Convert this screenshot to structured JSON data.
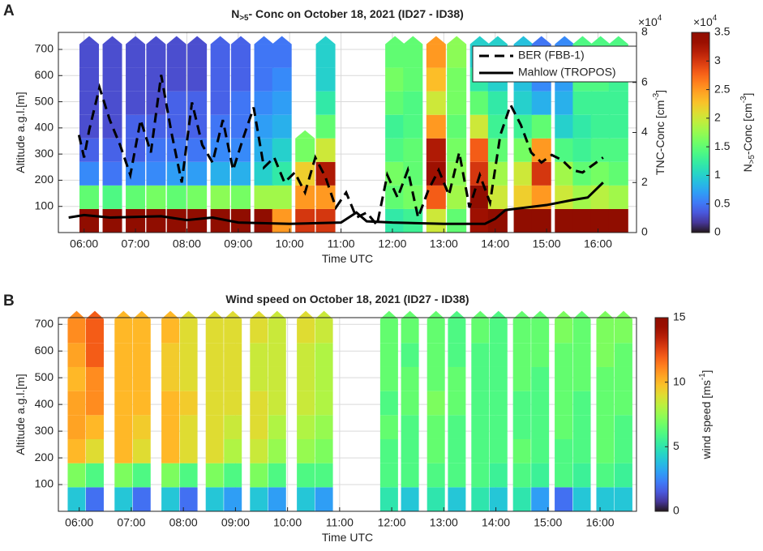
{
  "chart_data": [
    {
      "type": "profile",
      "panel": "A",
      "title": [
        {
          "text": "N"
        },
        {
          "text": ">5",
          "shift": "sub"
        },
        {
          "text": "- Conc on October 18, 2021 (ID27 - ID38)"
        }
      ],
      "x_label": [
        {
          "text": "Time UTC"
        }
      ],
      "y_label": [
        {
          "text": "Altitude a.g.l.[m]"
        }
      ],
      "y2_label": [
        {
          "text": "TNC-Conc [cm"
        },
        {
          "text": "-3",
          "shift": "super"
        },
        {
          "text": "]"
        }
      ],
      "y2_exponent": [
        {
          "text": "×10"
        },
        {
          "text": "4",
          "shift": "super"
        }
      ],
      "colorbar_label": [
        {
          "text": "N"
        },
        {
          "text": ">5",
          "shift": "sub"
        },
        {
          "text": "-Conc [cm"
        },
        {
          "text": "-3",
          "shift": "super"
        },
        {
          "text": "]"
        }
      ],
      "colorbar_exponent": [
        {
          "text": "×10"
        },
        {
          "text": "4",
          "shift": "super"
        }
      ],
      "colormap": "turbo",
      "clim": [
        0,
        3.5
      ],
      "cticks": [
        0,
        0.5,
        1,
        1.5,
        2,
        2.5,
        3,
        3.5
      ],
      "xlim": [
        5.5,
        16.75
      ],
      "xticks": [
        {
          "value": 6,
          "label": "06:00"
        },
        {
          "value": 7,
          "label": "07:00"
        },
        {
          "value": 8,
          "label": "08:00"
        },
        {
          "value": 9,
          "label": "09:00"
        },
        {
          "value": 10,
          "label": "10:00"
        },
        {
          "value": 11,
          "label": "11:00"
        },
        {
          "value": 12,
          "label": "12:00"
        },
        {
          "value": 13,
          "label": "13:00"
        },
        {
          "value": 14,
          "label": "14:00"
        },
        {
          "value": 15,
          "label": "15:00"
        },
        {
          "value": 16,
          "label": "16:00"
        }
      ],
      "ylim": [
        0,
        765
      ],
      "yticks": [
        100,
        200,
        300,
        400,
        500,
        600,
        700
      ],
      "y2lim": [
        0,
        8
      ],
      "y2ticks": [
        0,
        2,
        4,
        6,
        8
      ],
      "grid": true,
      "legend": "upper right",
      "altitude_bins": [
        0,
        90,
        180,
        270,
        360,
        450,
        540,
        630,
        720
      ],
      "profiles": [
        {
          "x": 6.1,
          "values": [
            3.5,
            1.5,
            0.6,
            0.4,
            0.3,
            0.3,
            0.3,
            0.3
          ]
        },
        {
          "x": 6.55,
          "values": [
            3.5,
            1.4,
            0.5,
            0.4,
            0.3,
            0.3,
            0.3,
            0.3
          ]
        },
        {
          "x": 7.0,
          "values": [
            3.5,
            1.5,
            0.6,
            0.4,
            0.4,
            0.3,
            0.3,
            0.3
          ]
        },
        {
          "x": 7.4,
          "values": [
            3.5,
            1.6,
            0.6,
            0.5,
            0.4,
            0.3,
            0.3,
            0.3
          ]
        },
        {
          "x": 7.8,
          "values": [
            3.5,
            1.5,
            0.7,
            0.5,
            0.4,
            0.4,
            0.3,
            0.3
          ]
        },
        {
          "x": 8.2,
          "values": [
            3.5,
            1.6,
            0.7,
            0.5,
            0.4,
            0.4,
            0.3,
            0.3
          ]
        },
        {
          "x": 8.65,
          "values": [
            3.5,
            1.7,
            0.8,
            0.6,
            0.5,
            0.4,
            0.4,
            0.4
          ]
        },
        {
          "x": 9.05,
          "values": [
            3.5,
            1.6,
            0.8,
            0.6,
            0.5,
            0.5,
            0.4,
            0.4
          ]
        },
        {
          "x": 9.5,
          "values": [
            3.5,
            1.8,
            1.0,
            0.8,
            0.7,
            0.6,
            0.5,
            0.5
          ]
        },
        {
          "x": 9.85,
          "values": [
            2.5,
            1.8,
            1.2,
            1.0,
            0.8,
            0.7,
            0.6,
            0.5
          ]
        },
        {
          "x": 10.3,
          "values": [
            3.0,
            2.5,
            2.2,
            1.6,
            null,
            null,
            null,
            null
          ]
        },
        {
          "x": 10.7,
          "values": [
            3.0,
            2.5,
            3.2,
            2.0,
            1.5,
            1.2,
            1.0,
            1.0
          ]
        },
        {
          "x": 12.05,
          "values": [
            1.2,
            1.5,
            1.6,
            1.4,
            1.3,
            1.5,
            1.6,
            1.5
          ]
        },
        {
          "x": 12.4,
          "values": [
            1.3,
            1.6,
            1.5,
            1.5,
            1.4,
            1.4,
            1.5,
            1.5
          ]
        },
        {
          "x": 12.85,
          "values": [
            2.0,
            2.8,
            3.3,
            3.2,
            2.5,
            2.0,
            2.3,
            2.5
          ]
        },
        {
          "x": 13.25,
          "values": [
            1.5,
            1.8,
            1.7,
            1.6,
            1.5,
            1.6,
            1.6,
            1.7
          ]
        },
        {
          "x": 13.7,
          "values": [
            3.3,
            3.5,
            3.0,
            2.8,
            2.0,
            1.5,
            1.2,
            1.0
          ]
        },
        {
          "x": 14.05,
          "values": [
            3.5,
            2.0,
            1.8,
            1.5,
            1.3,
            1.2,
            1.0,
            1.0
          ]
        },
        {
          "x": 14.55,
          "values": [
            3.5,
            2.2,
            2.0,
            1.6,
            1.3,
            1.0,
            0.9,
            0.9
          ]
        },
        {
          "x": 14.9,
          "values": [
            3.5,
            2.5,
            3.0,
            2.5,
            1.5,
            0.8,
            0.6,
            0.5
          ]
        },
        {
          "x": 15.35,
          "values": [
            3.5,
            2.0,
            1.8,
            1.4,
            1.0,
            0.8,
            0.7,
            0.6
          ]
        },
        {
          "x": 15.7,
          "values": [
            3.5,
            1.8,
            1.5,
            1.3,
            1.2,
            1.3,
            1.4,
            1.4
          ]
        },
        {
          "x": 16.05,
          "values": [
            3.5,
            1.9,
            1.6,
            1.4,
            1.3,
            1.3,
            1.4,
            1.4
          ]
        },
        {
          "x": 16.4,
          "values": [
            3.5,
            1.8,
            1.5,
            1.4,
            1.3,
            1.3,
            1.3,
            1.4
          ]
        }
      ],
      "series": [
        {
          "name": "BER (FBB-1)",
          "color": "#000000",
          "dash": "dashed",
          "axis": "y2",
          "x": [
            5.9,
            6.0,
            6.1,
            6.3,
            6.5,
            6.7,
            6.9,
            7.1,
            7.3,
            7.5,
            7.7,
            7.9,
            8.1,
            8.3,
            8.5,
            8.7,
            8.9,
            9.1,
            9.3,
            9.5,
            9.7,
            9.9,
            10.1,
            10.3,
            10.5,
            10.7,
            10.9,
            11.1,
            11.3,
            11.5,
            11.7,
            11.9,
            12.1,
            12.3,
            12.5,
            12.7,
            12.9,
            13.1,
            13.3,
            13.5,
            13.7,
            13.9,
            14.1,
            14.3,
            14.5,
            14.7,
            14.9,
            15.1,
            15.3,
            15.5,
            15.7,
            15.9,
            16.1
          ],
          "values": [
            3.9,
            3.0,
            4.1,
            5.8,
            4.5,
            3.5,
            2.3,
            4.5,
            3.2,
            6.3,
            4.0,
            2.0,
            5.2,
            3.5,
            2.8,
            4.5,
            2.5,
            3.8,
            5.0,
            2.6,
            3.0,
            2.0,
            2.4,
            1.6,
            3.0,
            2.2,
            1.0,
            1.6,
            0.6,
            0.8,
            0.3,
            2.3,
            1.4,
            2.5,
            0.6,
            1.7,
            2.5,
            1.5,
            3.2,
            1.0,
            2.3,
            1.2,
            3.9,
            5.1,
            4.3,
            3.2,
            2.8,
            3.1,
            2.9,
            2.5,
            2.4,
            2.7,
            3.0
          ]
        },
        {
          "name": "Mahlow (TROPOS)",
          "color": "#000000",
          "dash": "solid",
          "axis": "y2",
          "x": [
            5.7,
            6.0,
            6.5,
            7.5,
            8.0,
            8.5,
            9.0,
            10.0,
            11.0,
            11.3,
            11.5,
            12.0,
            13.0,
            13.8,
            14.0,
            14.2,
            15.0,
            15.5,
            15.8,
            16.1
          ],
          "values": [
            0.6,
            0.7,
            0.6,
            0.65,
            0.5,
            0.6,
            0.4,
            0.35,
            0.4,
            0.8,
            0.45,
            0.4,
            0.35,
            0.35,
            0.55,
            0.9,
            1.1,
            1.3,
            1.4,
            2.0
          ]
        }
      ]
    },
    {
      "type": "profile",
      "panel": "B",
      "title": [
        {
          "text": "Wind speed on October 18, 2021 (ID27 - ID38)"
        }
      ],
      "x_label": [
        {
          "text": "Time UTC"
        }
      ],
      "y_label": [
        {
          "text": "Altitude a.g.l.[m]"
        }
      ],
      "colorbar_label": [
        {
          "text": "wind speed [ms"
        },
        {
          "text": "-1",
          "shift": "super"
        },
        {
          "text": "]"
        }
      ],
      "colormap": "turbo",
      "clim": [
        0,
        15
      ],
      "cticks": [
        0,
        5,
        10,
        15
      ],
      "xlim": [
        5.6,
        16.7
      ],
      "xticks": [
        {
          "value": 6,
          "label": "06:00"
        },
        {
          "value": 7,
          "label": "07:00"
        },
        {
          "value": 8,
          "label": "08:00"
        },
        {
          "value": 9,
          "label": "09:00"
        },
        {
          "value": 10,
          "label": "10:00"
        },
        {
          "value": 11,
          "label": "11:00"
        },
        {
          "value": 12,
          "label": "12:00"
        },
        {
          "value": 13,
          "label": "13:00"
        },
        {
          "value": 14,
          "label": "14:00"
        },
        {
          "value": 15,
          "label": "15:00"
        },
        {
          "value": 16,
          "label": "16:00"
        }
      ],
      "ylim": [
        0,
        725
      ],
      "yticks": [
        100,
        200,
        300,
        400,
        500,
        600,
        700
      ],
      "grid": true,
      "altitude_bins": [
        0,
        90,
        180,
        270,
        360,
        450,
        540,
        630,
        720
      ],
      "profiles": [
        {
          "x": 5.95,
          "values": [
            4,
            7,
            10,
            10.5,
            10.5,
            10,
            10.5,
            11
          ]
        },
        {
          "x": 6.3,
          "values": [
            2,
            6,
            9,
            10,
            11,
            11,
            12,
            12
          ]
        },
        {
          "x": 6.85,
          "values": [
            4,
            7,
            10,
            10,
            10,
            10,
            10,
            10
          ]
        },
        {
          "x": 7.2,
          "values": [
            2,
            6,
            9,
            9.5,
            10,
            10,
            10,
            10
          ]
        },
        {
          "x": 7.75,
          "values": [
            4,
            7,
            10,
            10,
            10,
            9.5,
            9.5,
            10
          ]
        },
        {
          "x": 8.1,
          "values": [
            2,
            6,
            9,
            9,
            9.5,
            9,
            9,
            9
          ]
        },
        {
          "x": 8.6,
          "values": [
            4,
            7,
            9,
            9,
            9,
            9,
            9,
            9
          ]
        },
        {
          "x": 8.95,
          "values": [
            3,
            6,
            8,
            8.5,
            9,
            9,
            9,
            9
          ]
        },
        {
          "x": 9.45,
          "values": [
            4,
            7,
            8.5,
            9,
            9,
            8.5,
            8.5,
            9
          ]
        },
        {
          "x": 9.8,
          "values": [
            3,
            6,
            7.5,
            8,
            8.5,
            8.5,
            8.5,
            8.5
          ]
        },
        {
          "x": 10.35,
          "values": [
            4,
            6,
            7.5,
            8,
            8.5,
            8.5,
            8.5,
            9
          ]
        },
        {
          "x": 10.7,
          "values": [
            3,
            6,
            7,
            7.5,
            8,
            8,
            8,
            8.5
          ]
        },
        {
          "x": 11.95,
          "values": [
            5,
            6,
            6,
            6.5,
            6,
            6.5,
            6.5,
            6.5
          ]
        },
        {
          "x": 12.35,
          "values": [
            4,
            6,
            6,
            6,
            6.5,
            6.5,
            6,
            6.5
          ]
        },
        {
          "x": 12.85,
          "values": [
            5,
            6,
            6.5,
            6.5,
            7,
            6.5,
            6.5,
            6.5
          ]
        },
        {
          "x": 13.25,
          "values": [
            4,
            6,
            6,
            6,
            6.5,
            6.5,
            6,
            6
          ]
        },
        {
          "x": 13.7,
          "values": [
            5,
            6,
            6,
            6,
            6,
            6,
            6,
            6.5
          ]
        },
        {
          "x": 14.05,
          "values": [
            4,
            5.5,
            6,
            6,
            6,
            6,
            6,
            6
          ]
        },
        {
          "x": 14.5,
          "values": [
            5,
            6,
            6.5,
            6,
            6,
            6.5,
            6.5,
            6.5
          ]
        },
        {
          "x": 14.85,
          "values": [
            3,
            5.5,
            6,
            6,
            6,
            6,
            6.5,
            6.5
          ]
        },
        {
          "x": 15.3,
          "values": [
            2,
            6,
            6,
            6.5,
            6.5,
            6.5,
            6.5,
            7
          ]
        },
        {
          "x": 15.65,
          "values": [
            4,
            5.5,
            6,
            6,
            6,
            6.5,
            6.5,
            6.5
          ]
        },
        {
          "x": 16.1,
          "values": [
            4,
            6,
            6.5,
            6.5,
            6.5,
            6.5,
            7,
            7
          ]
        },
        {
          "x": 16.45,
          "values": [
            4,
            5.5,
            6,
            6,
            6.5,
            6.5,
            6.5,
            7
          ]
        }
      ]
    }
  ]
}
